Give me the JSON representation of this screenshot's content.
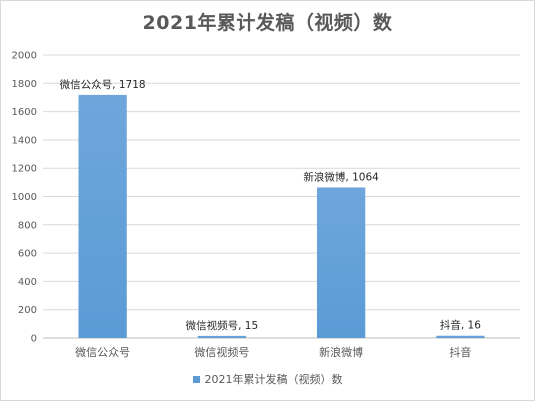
{
  "chart_data": {
    "type": "bar",
    "title": "2021年累计发稿（视频）数",
    "categories": [
      "微信公众号",
      "微信视频号",
      "新浪微博",
      "抖音"
    ],
    "series": [
      {
        "name": "2021年累计发稿（视频）数",
        "values": [
          1718,
          15,
          1064,
          16
        ]
      }
    ],
    "data_labels": [
      "微信公众号, 1718",
      "微信视频号, 15",
      "新浪微博, 1064",
      "抖音, 16"
    ],
    "y_ticks": [
      0,
      200,
      400,
      600,
      800,
      1000,
      1200,
      1400,
      1600,
      1800,
      2000
    ],
    "ylim": [
      0,
      2000
    ],
    "xlabel": "",
    "ylabel": "",
    "grid": true,
    "legend_position": "bottom",
    "bar_color": "#5b9bd5",
    "bar_color_light": "#6ea6dc"
  }
}
